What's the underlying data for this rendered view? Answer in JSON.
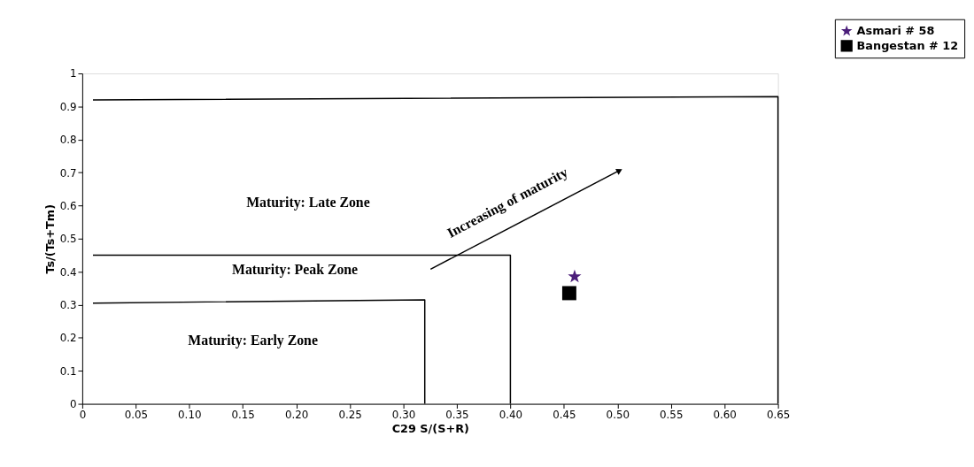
{
  "chart_data": {
    "type": "scatter",
    "xlabel": "C29 S/(S+R)",
    "ylabel": "Ts/(Ts+Tm)",
    "xlim": [
      0,
      0.65
    ],
    "ylim": [
      0,
      1
    ],
    "xticks": [
      0,
      0.05,
      {
        "value": 0.1,
        "label": "0.10"
      },
      0.15,
      {
        "value": 0.2,
        "label": "0.20"
      },
      0.25,
      {
        "value": 0.3,
        "label": "0.30"
      },
      0.35,
      {
        "value": 0.4,
        "label": "0.40"
      },
      0.45,
      {
        "value": 0.5,
        "label": "0.50"
      },
      0.55,
      {
        "value": 0.6,
        "label": "0.60"
      },
      0.65
    ],
    "yticks": [
      0,
      0.1,
      0.2,
      0.3,
      0.4,
      0.5,
      0.6,
      0.7,
      0.8,
      0.9,
      1
    ],
    "series": [
      {
        "name": "Asmari # 58",
        "color": "#4b1e7a",
        "marker": "star",
        "x": [
          0.46
        ],
        "values": [
          0.385
        ]
      },
      {
        "name": "Bangestan # 12",
        "color": "#000000",
        "marker": "square",
        "x": [
          0.455
        ],
        "values": [
          0.335
        ]
      },
      {
        "type": "line",
        "color": "#000000",
        "marker": "none",
        "x": [
          0.01,
          0.65,
          0.65
        ],
        "values": [
          0.92,
          0.93,
          0
        ]
      },
      {
        "type": "line",
        "color": "#000000",
        "marker": "none",
        "x": [
          0.01,
          0.4,
          0.4
        ],
        "values": [
          0.45,
          0.45,
          0
        ]
      },
      {
        "type": "line",
        "color": "#000000",
        "marker": "none",
        "x": [
          0.01,
          0.32,
          0.32
        ],
        "values": [
          0.305,
          0.315,
          0
        ]
      }
    ],
    "annotations": [
      "Maturity: Late Zone",
      "Maturity: Peak Zone",
      "Maturity: Early Zone",
      "Increasing of maturity"
    ],
    "legend": "top right",
    "grid": false
  }
}
